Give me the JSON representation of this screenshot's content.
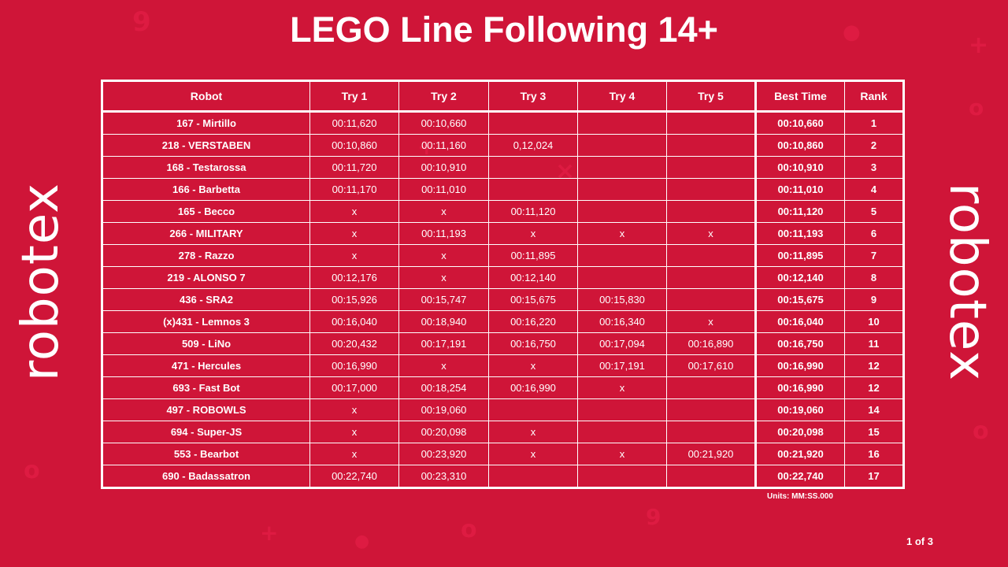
{
  "title": "LEGO Line Following 14+",
  "logo": {
    "text": "robotex",
    "icon": "robotex-logo"
  },
  "table": {
    "headers": [
      "Robot",
      "Try 1",
      "Try 2",
      "Try 3",
      "Try 4",
      "Try 5",
      "Best Time",
      "Rank"
    ],
    "rows": [
      {
        "robot": "167 - Mirtillo",
        "tries": [
          "00:11,620",
          "00:10,660",
          "",
          "",
          ""
        ],
        "best": "00:10,660",
        "rank": "1"
      },
      {
        "robot": "218 - VERSTABEN",
        "tries": [
          "00:10,860",
          "00:11,160",
          "0,12,024",
          "",
          ""
        ],
        "best": "00:10,860",
        "rank": "2"
      },
      {
        "robot": "168 - Testarossa",
        "tries": [
          "00:11,720",
          "00:10,910",
          "",
          "",
          ""
        ],
        "best": "00:10,910",
        "rank": "3"
      },
      {
        "robot": "166 - Barbetta",
        "tries": [
          "00:11,170",
          "00:11,010",
          "",
          "",
          ""
        ],
        "best": "00:11,010",
        "rank": "4"
      },
      {
        "robot": "165 - Becco",
        "tries": [
          "x",
          "x",
          "00:11,120",
          "",
          ""
        ],
        "best": "00:11,120",
        "rank": "5"
      },
      {
        "robot": "266 - MILITARY",
        "tries": [
          "x",
          "00:11,193",
          "x",
          "x",
          "x"
        ],
        "best": "00:11,193",
        "rank": "6"
      },
      {
        "robot": "278 - Razzo",
        "tries": [
          "x",
          "x",
          "00:11,895",
          "",
          ""
        ],
        "best": "00:11,895",
        "rank": "7"
      },
      {
        "robot": "219 - ALONSO 7",
        "tries": [
          "00:12,176",
          "x",
          "00:12,140",
          "",
          ""
        ],
        "best": "00:12,140",
        "rank": "8"
      },
      {
        "robot": "436 - SRA2",
        "tries": [
          "00:15,926",
          "00:15,747",
          "00:15,675",
          "00:15,830",
          ""
        ],
        "best": "00:15,675",
        "rank": "9"
      },
      {
        "robot": "(x)431 - Lemnos 3",
        "tries": [
          "00:16,040",
          "00:18,940",
          "00:16,220",
          "00:16,340",
          "x"
        ],
        "best": "00:16,040",
        "rank": "10"
      },
      {
        "robot": "509 - LiNo",
        "tries": [
          "00:20,432",
          "00:17,191",
          "00:16,750",
          "00:17,094",
          "00:16,890"
        ],
        "best": "00:16,750",
        "rank": "11"
      },
      {
        "robot": "471 - Hercules",
        "tries": [
          "00:16,990",
          "x",
          "x",
          "00:17,191",
          "00:17,610"
        ],
        "best": "00:16,990",
        "rank": "12"
      },
      {
        "robot": "693 - Fast Bot",
        "tries": [
          "00:17,000",
          "00:18,254",
          "00:16,990",
          "x",
          ""
        ],
        "best": "00:16,990",
        "rank": "12"
      },
      {
        "robot": "497 - ROBOWLS",
        "tries": [
          "x",
          "00:19,060",
          "",
          "",
          ""
        ],
        "best": "00:19,060",
        "rank": "14"
      },
      {
        "robot": "694 - Super-JS",
        "tries": [
          "x",
          "00:20,098",
          "x",
          "",
          ""
        ],
        "best": "00:20,098",
        "rank": "15"
      },
      {
        "robot": "553 - Bearbot",
        "tries": [
          "x",
          "00:23,920",
          "x",
          "x",
          "00:21,920"
        ],
        "best": "00:21,920",
        "rank": "16"
      },
      {
        "robot": "690 - Badassatron",
        "tries": [
          "00:22,740",
          "00:23,310",
          "",
          "",
          ""
        ],
        "best": "00:22,740",
        "rank": "17"
      }
    ]
  },
  "units": "Units: MM:SS.000",
  "page_indicator": "1 of 3",
  "colors": {
    "background": "#cf1538",
    "text": "#ffffff",
    "grid": "#ffffff"
  }
}
